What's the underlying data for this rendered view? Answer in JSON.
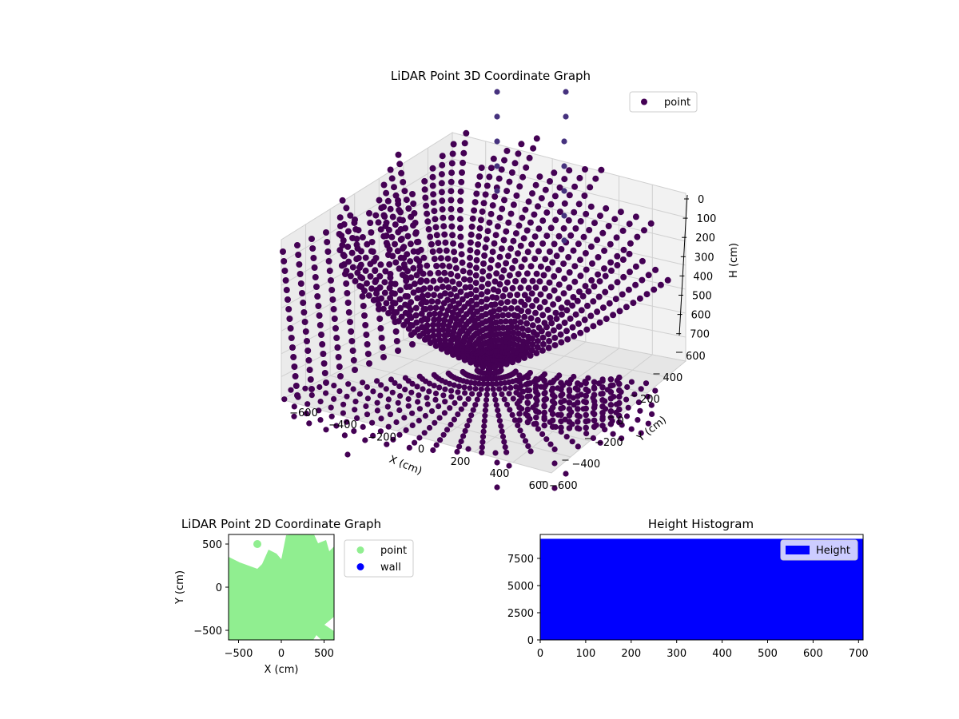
{
  "colors": {
    "point3d": "#440154",
    "point3d_top": "#46327e",
    "point2d": "#90ee90",
    "wall2d": "#0000ff",
    "hist": "#0000ff",
    "pane_left": "#ececec",
    "pane_back": "#f2f2f2",
    "grid": "#d0d0d0"
  },
  "chart_data": [
    {
      "type": "scatter",
      "projection": "3d",
      "title": "LiDAR Point 3D Coordinate Graph",
      "xlabel": "X (cm)",
      "ylabel": "Y (cm)",
      "zlabel": "H (cm)",
      "xlim": [
        -700,
        650
      ],
      "ylim": [
        -650,
        650
      ],
      "zlim": [
        700,
        0
      ],
      "x_ticks": [
        "−600",
        "−400",
        "−200",
        "0",
        "200",
        "400",
        "600"
      ],
      "y_ticks": [
        "600",
        "400",
        "200",
        "0",
        "−200",
        "−400",
        "−600"
      ],
      "z_ticks": [
        "0",
        "100",
        "200",
        "300",
        "400",
        "500",
        "600",
        "700"
      ],
      "grid": true,
      "legend": {
        "placement": "top-right",
        "entries": [
          "point"
        ]
      },
      "series": [
        {
          "name": "point",
          "description": "dense radial arcs of LiDAR returns around the sensor origin"
        }
      ]
    },
    {
      "type": "scatter",
      "title": "LiDAR Point 2D Coordinate Graph",
      "xlabel": "X (cm)",
      "ylabel": "Y (cm)",
      "xlim": [
        -620,
        620
      ],
      "ylim": [
        -620,
        620
      ],
      "x_ticks": [
        "−500",
        "0",
        "500"
      ],
      "y_ticks": [
        "500",
        "0",
        "−500"
      ],
      "legend": {
        "placement": "outside-right",
        "entries": [
          "point",
          "wall"
        ]
      },
      "series": [
        {
          "name": "point",
          "values": "fills nearly the whole area"
        },
        {
          "name": "wall",
          "values": []
        }
      ]
    },
    {
      "type": "bar",
      "title": "Height Histogram",
      "xlim": [
        0,
        710
      ],
      "ylim": [
        0,
        9700
      ],
      "x_ticks": [
        "0",
        "100",
        "200",
        "300",
        "400",
        "500",
        "600",
        "700"
      ],
      "y_ticks": [
        "0",
        "2500",
        "5000",
        "7500"
      ],
      "legend": {
        "placement": "top-right",
        "entries": [
          "Height"
        ]
      },
      "series": [
        {
          "name": "Height",
          "bins": [
            [
              0,
              710
            ]
          ],
          "values": [
            9300
          ]
        }
      ]
    }
  ]
}
